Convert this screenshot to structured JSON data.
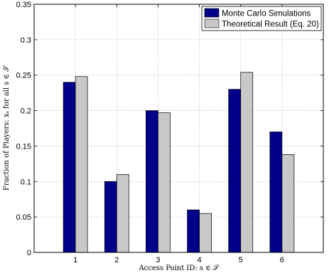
{
  "chart_data": {
    "type": "bar",
    "categories": [
      "1",
      "2",
      "3",
      "4",
      "5",
      "6"
    ],
    "series": [
      {
        "name": "Monte Carlo Simulations",
        "values": [
          0.24,
          0.1,
          0.2,
          0.06,
          0.23,
          0.17
        ],
        "color": "#00008b"
      },
      {
        "name": "Theoretical Result (Eq. 20)",
        "values": [
          0.248,
          0.11,
          0.197,
          0.055,
          0.254,
          0.138
        ],
        "color": "#c8c8c8"
      }
    ],
    "xlabel": "Access Point ID: s ∈ 𝒮",
    "ylabel": "Fraction of Players: xₛ for all s ∈ 𝒮",
    "ylim": [
      0,
      0.35
    ],
    "yticks": [
      "0",
      "0.05",
      "0.1",
      "0.15",
      "0.2",
      "0.25",
      "0.3",
      "0.35"
    ],
    "ytick_values": [
      0,
      0.05,
      0.1,
      0.15,
      0.2,
      0.25,
      0.3,
      0.35
    ],
    "grid": true,
    "legend_position": "top-right"
  }
}
